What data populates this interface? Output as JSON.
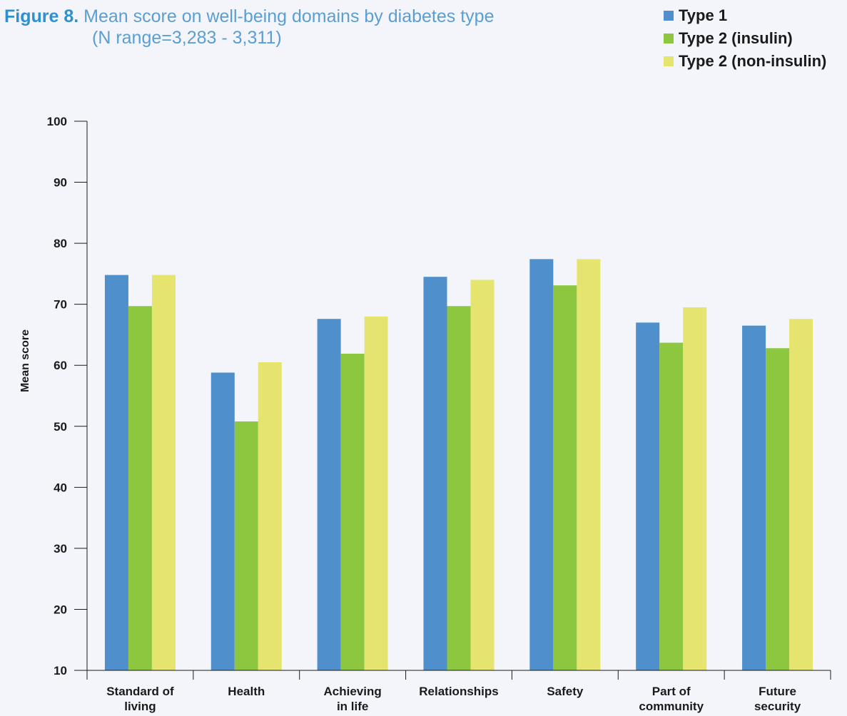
{
  "title": {
    "label": "Figure 8.",
    "line1": "Mean score on well-being domains by diabetes type",
    "line2": "(N range=3,283 - 3,311)"
  },
  "chart_data": {
    "type": "bar",
    "categories": [
      [
        "Standard of",
        "living"
      ],
      [
        "Health"
      ],
      [
        "Achieving",
        "in life"
      ],
      [
        "Relationships"
      ],
      [
        "Safety"
      ],
      [
        "Part of",
        "community"
      ],
      [
        "Future",
        "security"
      ]
    ],
    "series": [
      {
        "name": "Type 1",
        "color": "#4f8fcb",
        "values": [
          74.8,
          58.8,
          67.6,
          74.5,
          77.4,
          67.0,
          66.5
        ]
      },
      {
        "name": "Type 2 (insulin)",
        "color": "#8dc63f",
        "values": [
          69.7,
          50.8,
          61.9,
          69.7,
          73.1,
          63.7,
          62.8
        ]
      },
      {
        "name": "Type 2 (non-insulin)",
        "color": "#e4e46e",
        "values": [
          74.8,
          60.5,
          68.0,
          74.0,
          77.4,
          69.5,
          67.6
        ]
      }
    ],
    "ylabel": "Mean score",
    "ylim": [
      10,
      100
    ],
    "yticks": [
      "100",
      "90",
      "80",
      "70",
      "60",
      "50",
      "40",
      "30",
      "20",
      "10"
    ],
    "legend_position": "top-right",
    "grid": false
  }
}
